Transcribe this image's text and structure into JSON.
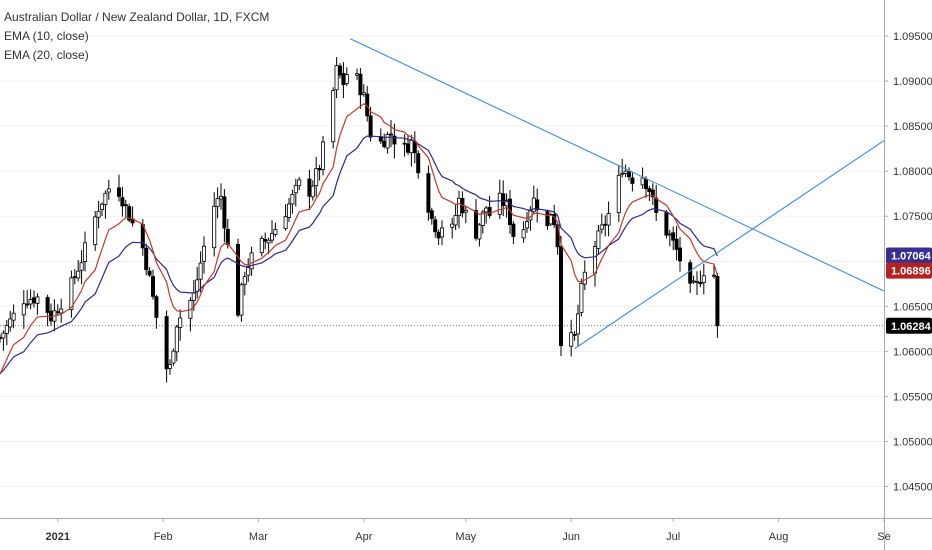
{
  "chart_data": {
    "type": "candlestick",
    "title": "Australian Dollar / New Zealand Dollar, 1D, FXCM",
    "indicators": [
      "EMA (10, close)",
      "EMA (20, close)"
    ],
    "ylim": [
      1.0415,
      1.099
    ],
    "y_ticks": [
      "1.09500",
      "1.09000",
      "1.08500",
      "1.08000",
      "1.07500",
      "1.07000",
      "1.06500",
      "1.06000",
      "1.05500",
      "1.05000",
      "1.04500"
    ],
    "y_tick_values": [
      1.095,
      1.09,
      1.085,
      1.08,
      1.075,
      1.07,
      1.065,
      1.06,
      1.055,
      1.05,
      1.045
    ],
    "x_labels": [
      {
        "label": "2021",
        "day": 0,
        "bold": true
      },
      {
        "label": "Feb",
        "day": 31
      },
      {
        "label": "Mar",
        "day": 59
      },
      {
        "label": "Apr",
        "day": 90
      },
      {
        "label": "May",
        "day": 120
      },
      {
        "label": "Jun",
        "day": 151
      },
      {
        "label": "Jul",
        "day": 181
      },
      {
        "label": "Aug",
        "day": 212
      },
      {
        "label": "Se",
        "day": 243
      }
    ],
    "x_day_range": [
      -17,
      243
    ],
    "last_close": 1.06284,
    "ema10_last": 1.06896,
    "ema20_last": 1.07064,
    "price_badges": [
      {
        "label": "1.07064",
        "value": 1.07064,
        "color": "#3a2f8f"
      },
      {
        "label": "1.06896",
        "value": 1.06896,
        "color": "#b22222"
      },
      {
        "label": "1.06284",
        "value": 1.06284,
        "color": "#000000"
      }
    ],
    "anchors": [
      [
        -17,
        1.0615
      ],
      [
        -10,
        1.0658
      ],
      [
        -5,
        1.066
      ],
      [
        -2,
        1.0638
      ],
      [
        3,
        1.0665
      ],
      [
        7,
        1.0702
      ],
      [
        12,
        1.076
      ],
      [
        16,
        1.0788
      ],
      [
        18,
        1.0778
      ],
      [
        22,
        1.0742
      ],
      [
        25,
        1.0715
      ],
      [
        27,
        1.068
      ],
      [
        29,
        1.0638
      ],
      [
        30,
        1.058
      ],
      [
        33,
        1.0582
      ],
      [
        35,
        1.0632
      ],
      [
        40,
        1.0662
      ],
      [
        43,
        1.0716
      ],
      [
        46,
        1.0762
      ],
      [
        48,
        1.0772
      ],
      [
        50,
        1.0716
      ],
      [
        52,
        1.068
      ],
      [
        53,
        1.0645
      ],
      [
        55,
        1.0688
      ],
      [
        58,
        1.0712
      ],
      [
        62,
        1.0726
      ],
      [
        66,
        1.0748
      ],
      [
        70,
        1.0778
      ],
      [
        72,
        1.0793
      ],
      [
        74,
        1.0778
      ],
      [
        77,
        1.0805
      ],
      [
        80,
        1.0865
      ],
      [
        82,
        1.0912
      ],
      [
        84,
        1.0898
      ],
      [
        86,
        1.0918
      ],
      [
        88,
        1.0902
      ],
      [
        90,
        1.0882
      ],
      [
        92,
        1.0842
      ],
      [
        95,
        1.0832
      ],
      [
        98,
        1.0842
      ],
      [
        101,
        1.0822
      ],
      [
        104,
        1.0832
      ],
      [
        106,
        1.0806
      ],
      [
        108,
        1.0776
      ],
      [
        110,
        1.0747
      ],
      [
        112,
        1.0732
      ],
      [
        114,
        1.0748
      ],
      [
        116,
        1.0735
      ],
      [
        118,
        1.0768
      ],
      [
        120,
        1.0752
      ],
      [
        122,
        1.0722
      ],
      [
        124,
        1.0742
      ],
      [
        126,
        1.076
      ],
      [
        128,
        1.0744
      ],
      [
        130,
        1.0768
      ],
      [
        132,
        1.0762
      ],
      [
        134,
        1.073
      ],
      [
        136,
        1.0722
      ],
      [
        138,
        1.0752
      ],
      [
        140,
        1.0768
      ],
      [
        142,
        1.0758
      ],
      [
        144,
        1.0737
      ],
      [
        145,
        1.0755
      ],
      [
        146,
        1.0745
      ],
      [
        147,
        1.072
      ],
      [
        148,
        1.0614
      ],
      [
        150,
        1.0612
      ],
      [
        152,
        1.0615
      ],
      [
        154,
        1.0668
      ],
      [
        156,
        1.0702
      ],
      [
        158,
        1.0718
      ],
      [
        160,
        1.0735
      ],
      [
        162,
        1.0752
      ],
      [
        164,
        1.0775
      ],
      [
        166,
        1.0805
      ],
      [
        168,
        1.0796
      ],
      [
        170,
        1.0788
      ],
      [
        172,
        1.0795
      ],
      [
        174,
        1.078
      ],
      [
        176,
        1.0752
      ],
      [
        178,
        1.0738
      ],
      [
        180,
        1.0728
      ],
      [
        182,
        1.0712
      ],
      [
        184,
        1.0692
      ],
      [
        186,
        1.0668
      ],
      [
        188,
        1.0673
      ],
      [
        190,
        1.069
      ],
      [
        192,
        1.0698
      ],
      [
        193,
        1.0685
      ],
      [
        194,
        1.0629
      ]
    ],
    "trend_lines": [
      {
        "name": "descending-trendline",
        "points": [
          [
            86,
            1.0947
          ],
          [
            243,
            1.0667
          ]
        ],
        "color": "#3d8ed6"
      },
      {
        "name": "ascending-trendline",
        "points": [
          [
            152,
            1.0603
          ],
          [
            243,
            1.0834
          ]
        ],
        "color": "#3d8ed6"
      }
    ],
    "colors": {
      "up": "#ffffff",
      "down": "#000000",
      "ema10": "#c0392b",
      "ema20": "#2e2a86",
      "grid": "#d9d9d9"
    }
  }
}
